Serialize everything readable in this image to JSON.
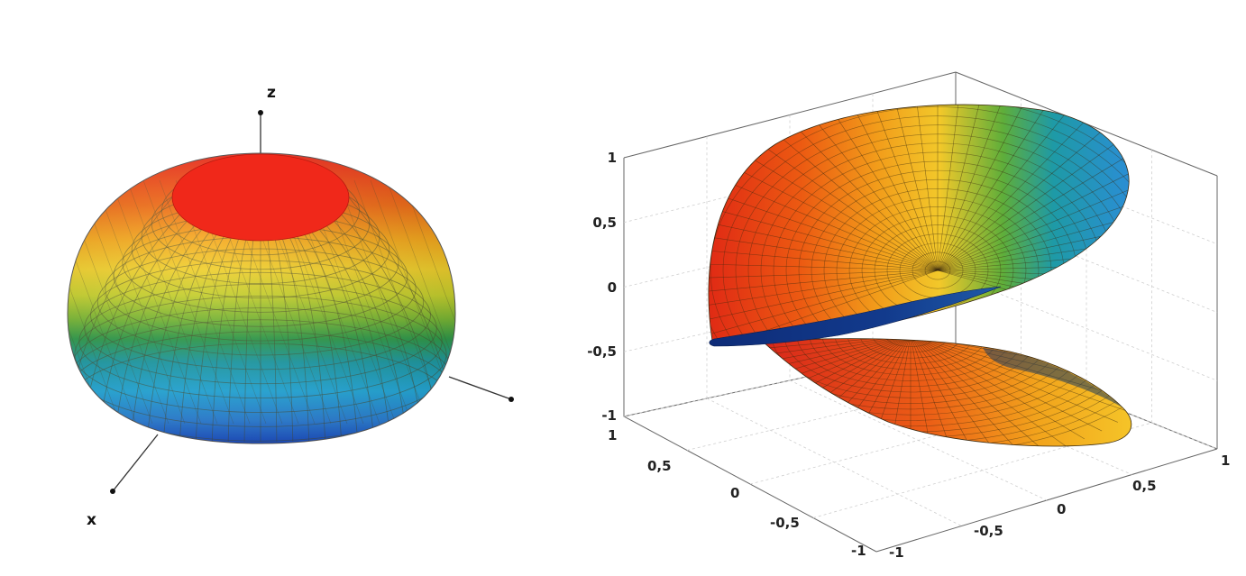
{
  "left_figure": {
    "axis_labels": {
      "z": "z",
      "x": "x"
    },
    "colors": {
      "cap": "#f0281a",
      "bands": [
        "#f0281a",
        "#f06a12",
        "#f5a818",
        "#f2d028",
        "#c8d22a",
        "#7cba32",
        "#2e9c4a",
        "#1e9ea8",
        "#26aee0",
        "#2e84dc",
        "#1c4ec8"
      ]
    }
  },
  "right_figure": {
    "z_ticks": [
      "1",
      "0,5",
      "0",
      "-0,5",
      "-1"
    ],
    "y_ticks": [
      "1",
      "0,5",
      "0",
      "-0,5",
      "-1"
    ],
    "x_ticks": [
      "-1",
      "-0,5",
      "0",
      "0,5",
      "1"
    ],
    "colors": {
      "warm": "#e8321a",
      "mid": "#f5b41c",
      "cool": "#2a8ed4",
      "dark": "#123a8c"
    }
  }
}
